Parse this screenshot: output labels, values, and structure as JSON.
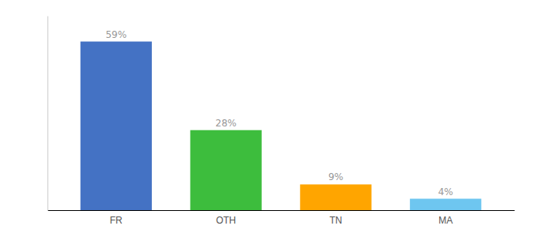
{
  "chart_data": {
    "type": "bar",
    "categories": [
      "FR",
      "OTH",
      "TN",
      "MA"
    ],
    "values": [
      59,
      28,
      9,
      4
    ],
    "value_labels": [
      "59%",
      "28%",
      "9%",
      "4%"
    ],
    "colors": [
      "#4472C4",
      "#3DBD3D",
      "#FFA500",
      "#6EC6F0"
    ],
    "ylim": [
      0,
      68
    ],
    "data_labels": true,
    "tick_labels": "x"
  }
}
